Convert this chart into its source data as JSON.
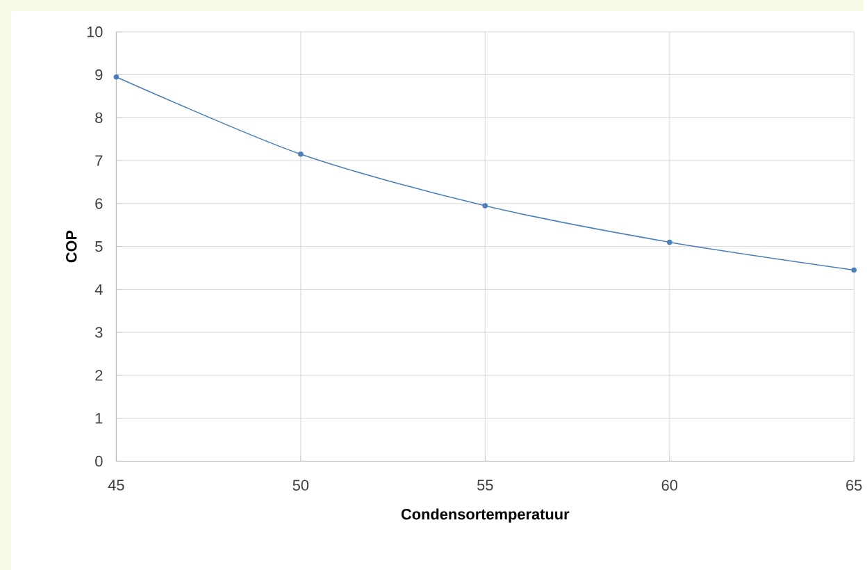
{
  "chart_data": {
    "type": "line",
    "xlabel": "Condensortemperatuur",
    "ylabel": "COP",
    "x": [
      45,
      50,
      55,
      60,
      65
    ],
    "series": [
      {
        "color": "#4a7ebb",
        "values": [
          8.95,
          7.15,
          5.95,
          5.1,
          4.45
        ]
      }
    ],
    "xlim": [
      45,
      65
    ],
    "xticks": [
      45,
      50,
      55,
      60,
      65
    ],
    "ylim": [
      0,
      10
    ],
    "yticks": [
      0,
      1,
      2,
      3,
      4,
      5,
      6,
      7,
      8,
      9,
      10
    ],
    "grid": true,
    "marker": "circle",
    "line_style": "solid"
  }
}
